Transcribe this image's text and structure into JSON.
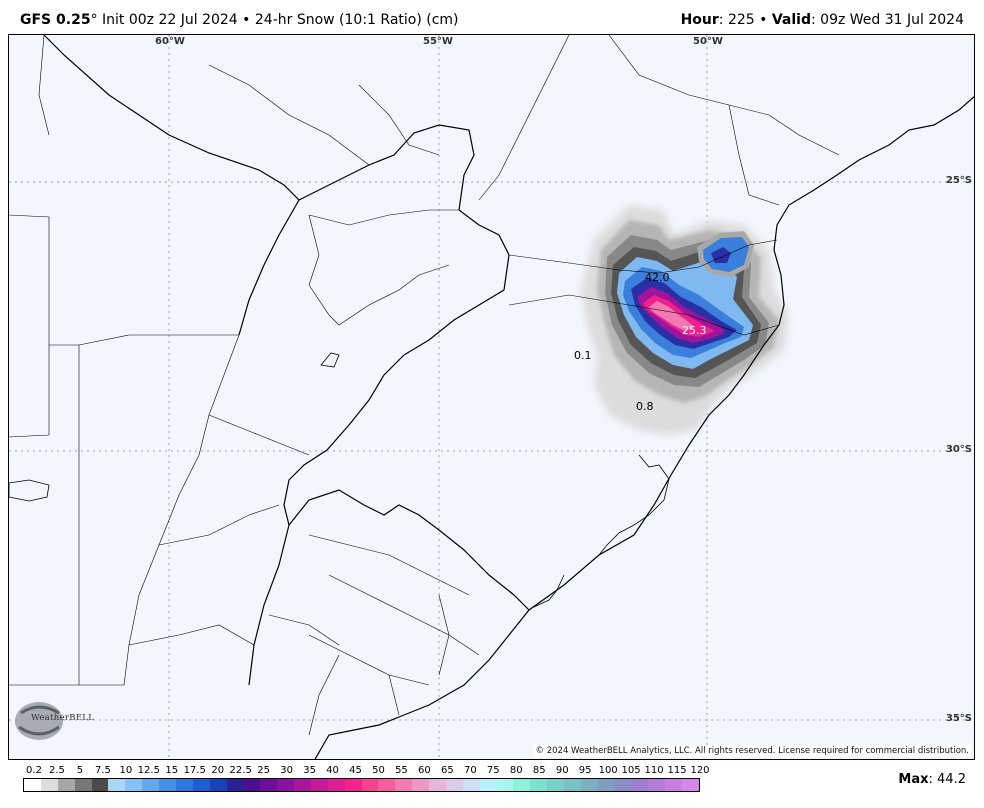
{
  "header": {
    "model": "GFS 0.25",
    "degree_symbol": "°",
    "init": " Init 00z 22 Jul 2024",
    "bullet": " • ",
    "product": "24-hr Snow (10:1 Ratio) (cm)",
    "hour_label": "Hour",
    "hour_value": ": 225",
    "valid_label": "Valid",
    "valid_value": ": 09z Wed 31 Jul 2024"
  },
  "map": {
    "longitude_labels": [
      "60°W",
      "55°W",
      "50°W"
    ],
    "latitude_labels": [
      "25°S",
      "30°S",
      "35°S"
    ],
    "value_labels": [
      "42.0",
      "25.3",
      "0.1",
      "0.8"
    ],
    "copyright": "© 2024 WeatherBELL Analytics, LLC. All rights reserved. License required for commercial distribution.",
    "logo_text": "WeatherBELL"
  },
  "legend": {
    "ticks": [
      "0.2",
      "2.5",
      "5",
      "7.5",
      "10",
      "12.5",
      "15",
      "17.5",
      "20",
      "22.5",
      "25",
      "30",
      "35",
      "40",
      "45",
      "50",
      "55",
      "60",
      "65",
      "70",
      "75",
      "80",
      "85",
      "90",
      "95",
      "100",
      "105",
      "110",
      "115",
      "120"
    ],
    "colors": [
      "#ffffff",
      "#dddddd",
      "#a8a8a8",
      "#777777",
      "#4b4b4b",
      "#a9d6f7",
      "#86c1f3",
      "#63a8ee",
      "#4690e8",
      "#2c76e0",
      "#1d5fd2",
      "#1743b8",
      "#2b2196",
      "#4b0f90",
      "#6b0f9c",
      "#8a12a0",
      "#a8169c",
      "#c61a98",
      "#e01d93",
      "#f5228e",
      "#f7428f",
      "#f65d9e",
      "#f37ab2",
      "#ef98c7",
      "#e9b6da",
      "#dbcaea",
      "#cce1f5",
      "#b9f0fb",
      "#a7f7f0",
      "#8ff0dc",
      "#7ee0cf",
      "#78d0c9",
      "#78c2c6",
      "#7ab0c4",
      "#7f9ec3",
      "#8c8cc6",
      "#9f7ed0",
      "#b67ad9",
      "#cb7ee2",
      "#d785ea"
    ]
  },
  "max": {
    "label": "Max",
    "value": ": 44.2"
  }
}
